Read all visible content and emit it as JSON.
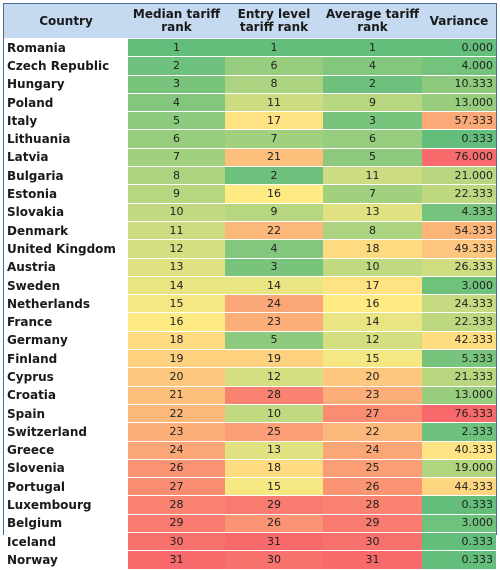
{
  "headers": [
    "Country",
    "Median tariff rank",
    "Entry level tariff rank",
    "Average tariff rank",
    "Variance"
  ],
  "rows": [
    {
      "country": "Romania",
      "median": 1,
      "entry": 1,
      "average": 1,
      "variance": "0.000"
    },
    {
      "country": "Czech Republic",
      "median": 2,
      "entry": 6,
      "average": 4,
      "variance": "4.000"
    },
    {
      "country": "Hungary",
      "median": 3,
      "entry": 8,
      "average": 2,
      "variance": "10.333"
    },
    {
      "country": "Poland",
      "median": 4,
      "entry": 11,
      "average": 9,
      "variance": "13.000"
    },
    {
      "country": "Italy",
      "median": 5,
      "entry": 17,
      "average": 3,
      "variance": "57.333"
    },
    {
      "country": "Lithuania",
      "median": 6,
      "entry": 7,
      "average": 6,
      "variance": "0.333"
    },
    {
      "country": "Latvia",
      "median": 7,
      "entry": 21,
      "average": 5,
      "variance": "76.000"
    },
    {
      "country": "Bulgaria",
      "median": 8,
      "entry": 2,
      "average": 11,
      "variance": "21.000"
    },
    {
      "country": "Estonia",
      "median": 9,
      "entry": 16,
      "average": 7,
      "variance": "22.333"
    },
    {
      "country": "Slovakia",
      "median": 10,
      "entry": 9,
      "average": 13,
      "variance": "4.333"
    },
    {
      "country": "Denmark",
      "median": 11,
      "entry": 22,
      "average": 8,
      "variance": "54.333"
    },
    {
      "country": "United Kingdom",
      "median": 12,
      "entry": 4,
      "average": 18,
      "variance": "49.333"
    },
    {
      "country": "Austria",
      "median": 13,
      "entry": 3,
      "average": 10,
      "variance": "26.333"
    },
    {
      "country": "Sweden",
      "median": 14,
      "entry": 14,
      "average": 17,
      "variance": "3.000"
    },
    {
      "country": "Netherlands",
      "median": 15,
      "entry": 24,
      "average": 16,
      "variance": "24.333"
    },
    {
      "country": "France",
      "median": 16,
      "entry": 23,
      "average": 14,
      "variance": "22.333"
    },
    {
      "country": "Germany",
      "median": 18,
      "entry": 5,
      "average": 12,
      "variance": "42.333"
    },
    {
      "country": "Finland",
      "median": 19,
      "entry": 19,
      "average": 15,
      "variance": "5.333"
    },
    {
      "country": "Cyprus",
      "median": 20,
      "entry": 12,
      "average": 20,
      "variance": "21.333"
    },
    {
      "country": "Croatia",
      "median": 21,
      "entry": 28,
      "average": 23,
      "variance": "13.000"
    },
    {
      "country": "Spain",
      "median": 22,
      "entry": 10,
      "average": 27,
      "variance": "76.333"
    },
    {
      "country": "Switzerland",
      "median": 23,
      "entry": 25,
      "average": 22,
      "variance": "2.333"
    },
    {
      "country": "Greece",
      "median": 24,
      "entry": 13,
      "average": 24,
      "variance": "40.333"
    },
    {
      "country": "Slovenia",
      "median": 26,
      "entry": 18,
      "average": 25,
      "variance": "19.000"
    },
    {
      "country": "Portugal",
      "median": 27,
      "entry": 15,
      "average": 26,
      "variance": "44.333"
    },
    {
      "country": "Luxembourg",
      "median": 28,
      "entry": 29,
      "average": 28,
      "variance": "0.333"
    },
    {
      "country": "Belgium",
      "median": 29,
      "entry": 26,
      "average": 29,
      "variance": "3.000"
    },
    {
      "country": "Iceland",
      "median": 30,
      "entry": 31,
      "average": 30,
      "variance": "0.333"
    },
    {
      "country": "Norway",
      "median": 31,
      "entry": 30,
      "average": 31,
      "variance": "0.333"
    }
  ],
  "colors": {
    "header_bg": "#c5d9f1",
    "scale_low": "#63be7b",
    "scale_mid": "#ffeb84",
    "scale_high": "#f8696b"
  }
}
